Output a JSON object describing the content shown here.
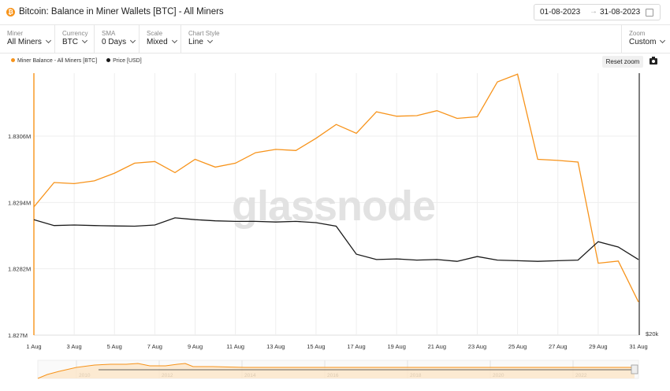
{
  "header": {
    "title": "Bitcoin: Balance in Miner Wallets [BTC] - All Miners",
    "icon": "bitcoin-icon",
    "date_from": "01-08-2023",
    "date_arrow": "→",
    "date_to": "31-08-2023"
  },
  "toolbar": {
    "miner": {
      "label": "Miner",
      "value": "All Miners"
    },
    "currency": {
      "label": "Currency",
      "value": "BTC"
    },
    "sma": {
      "label": "SMA",
      "value": "0 Days"
    },
    "scale": {
      "label": "Scale",
      "value": "Mixed"
    },
    "chart_style": {
      "label": "Chart Style",
      "value": "Line"
    },
    "zoom": {
      "label": "Zoom",
      "value": "Custom"
    }
  },
  "controls": {
    "reset_zoom": "Reset zoom",
    "camera": "camera-icon"
  },
  "watermark": "glassnode",
  "colors": {
    "miner_balance": "#f7931a",
    "price": "#1a1a1a",
    "grid": "#eeeeee"
  },
  "chart_data": {
    "type": "line",
    "title": "Bitcoin: Balance in Miner Wallets [BTC] - All Miners",
    "x": [
      "2023-08-01",
      "2023-08-02",
      "2023-08-03",
      "2023-08-04",
      "2023-08-05",
      "2023-08-06",
      "2023-08-07",
      "2023-08-08",
      "2023-08-09",
      "2023-08-10",
      "2023-08-11",
      "2023-08-12",
      "2023-08-13",
      "2023-08-14",
      "2023-08-15",
      "2023-08-16",
      "2023-08-17",
      "2023-08-18",
      "2023-08-19",
      "2023-08-20",
      "2023-08-21",
      "2023-08-22",
      "2023-08-23",
      "2023-08-24",
      "2023-08-25",
      "2023-08-26",
      "2023-08-27",
      "2023-08-28",
      "2023-08-29",
      "2023-08-30",
      "2023-08-31"
    ],
    "x_tick_labels": [
      "1 Aug",
      "3 Aug",
      "5 Aug",
      "7 Aug",
      "9 Aug",
      "11 Aug",
      "13 Aug",
      "15 Aug",
      "17 Aug",
      "19 Aug",
      "21 Aug",
      "23 Aug",
      "25 Aug",
      "27 Aug",
      "29 Aug",
      "31 Aug"
    ],
    "y_tick_labels": [
      "1.8306M",
      "1.8294M",
      "1.8282M",
      "1.827M"
    ],
    "y_ticks": [
      1830600,
      1829400,
      1828200,
      1827000
    ],
    "ylim": [
      1827000,
      1830600
    ],
    "y2_tick_labels": [
      "$20k"
    ],
    "legend_placement": "top-left",
    "grid": true,
    "series": [
      {
        "name": "Miner Balance - All Miners [BTC]",
        "axis": "left",
        "values": [
          1829320,
          1829760,
          1829740,
          1829790,
          1829930,
          1830110,
          1830140,
          1829940,
          1830180,
          1830040,
          1830110,
          1830300,
          1830360,
          1830340,
          1830560,
          1830810,
          1830650,
          1831040,
          1830960,
          1830970,
          1831060,
          1830920,
          1830950,
          1831580,
          1831720,
          1830180,
          1830160,
          1830130,
          1828300,
          1828340,
          1827600
        ]
      },
      {
        "name": "Price [USD]",
        "axis": "right",
        "values": [
          29700,
          29200,
          29250,
          29200,
          29170,
          29150,
          29250,
          29850,
          29700,
          29600,
          29550,
          29550,
          29500,
          29550,
          29450,
          29150,
          26800,
          26350,
          26400,
          26300,
          26350,
          26200,
          26600,
          26300,
          26250,
          26200,
          26250,
          26300,
          27850,
          27400,
          26350
        ]
      }
    ],
    "y2lim": [
      20000,
      42000
    ]
  },
  "navigator": {
    "years": [
      "2010",
      "2012",
      "2014",
      "2016",
      "2018",
      "2020",
      "2022"
    ]
  }
}
